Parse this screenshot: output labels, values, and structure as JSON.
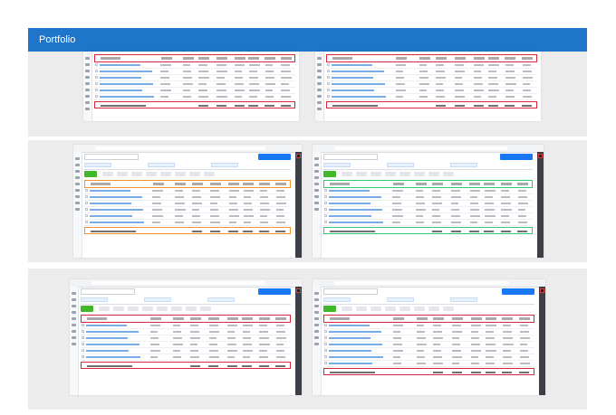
{
  "header": {
    "title": "Portfolio",
    "bg_color": "#1f75c9"
  },
  "colors": {
    "highlight_red": "#d7263d",
    "highlight_orange": "#f0932b",
    "highlight_green": "#2ecc71",
    "brand_blue": "#1877f2",
    "create_green": "#42b72a"
  },
  "screenshots": [
    {
      "name": "shot-1",
      "crop": "table-only",
      "highlight": "red",
      "rows": 6
    },
    {
      "name": "shot-2",
      "crop": "table-only",
      "highlight": "red",
      "rows": 6
    },
    {
      "name": "shot-3",
      "crop": "full-window",
      "highlight": "orange",
      "rows": 6
    },
    {
      "name": "shot-4",
      "crop": "full-window",
      "highlight": "green",
      "rows": 6
    },
    {
      "name": "shot-5",
      "crop": "full-window",
      "highlight": "red",
      "rows": 6
    },
    {
      "name": "shot-6",
      "crop": "full-window",
      "highlight": "red",
      "rows": 7
    }
  ]
}
